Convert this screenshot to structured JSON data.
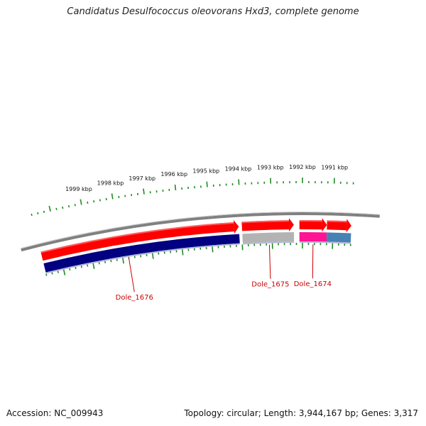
{
  "title": "Candidatus Desulfococcus oleovorans Hxd3, complete genome",
  "footer": {
    "accession": "Accession: NC_009943",
    "summary": "Topology: circular; Length: 3,944,167 bp; Genes: 3,317"
  },
  "scale": {
    "ticks_kbp": [
      1999,
      1998,
      1997,
      1996,
      1995,
      1994,
      1993,
      1992,
      1991
    ],
    "labels": [
      "1999 kbp",
      "1998 kbp",
      "1997 kbp",
      "1996 kbp",
      "1995 kbp",
      "1994 kbp",
      "1993 kbp",
      "1992 kbp",
      "1991 kbp"
    ]
  },
  "genes": [
    {
      "name": "Dole_1676",
      "start_kbp": 2000.6,
      "end_kbp": 1994.08,
      "strand": "reverse",
      "fill": "#ff0000"
    },
    {
      "name": "Dole_1675",
      "start_kbp": 1993.98,
      "end_kbp": 1992.28,
      "strand": "reverse",
      "fill": "#ff0000"
    },
    {
      "name": "Dole_1674",
      "start_kbp": 1992.1,
      "end_kbp": 1991.2,
      "strand": "reverse",
      "fill": "#ff0000"
    },
    {
      "name": "",
      "start_kbp": 1991.2,
      "end_kbp": 1990.4,
      "strand": "reverse",
      "fill": "#ff0000"
    }
  ],
  "category_bands": [
    {
      "start_kbp": 2000.6,
      "end_kbp": 1994.08,
      "color": "#000080"
    },
    {
      "start_kbp": 1993.98,
      "end_kbp": 1992.28,
      "color": "#b3b3b3"
    },
    {
      "start_kbp": 1992.1,
      "end_kbp": 1991.2,
      "color": "#ff1493"
    },
    {
      "start_kbp": 1991.2,
      "end_kbp": 1990.4,
      "color": "#4682b4"
    }
  ],
  "gene_labels": [
    {
      "text": "Dole_1676",
      "kbp": 1997.8
    },
    {
      "text": "Dole_1675",
      "kbp": 1993.1
    },
    {
      "text": "Dole_1674",
      "kbp": 1991.65
    }
  ],
  "colors": {
    "backbone": "#808080",
    "tick": "#228B22",
    "label": "#cc0000"
  }
}
